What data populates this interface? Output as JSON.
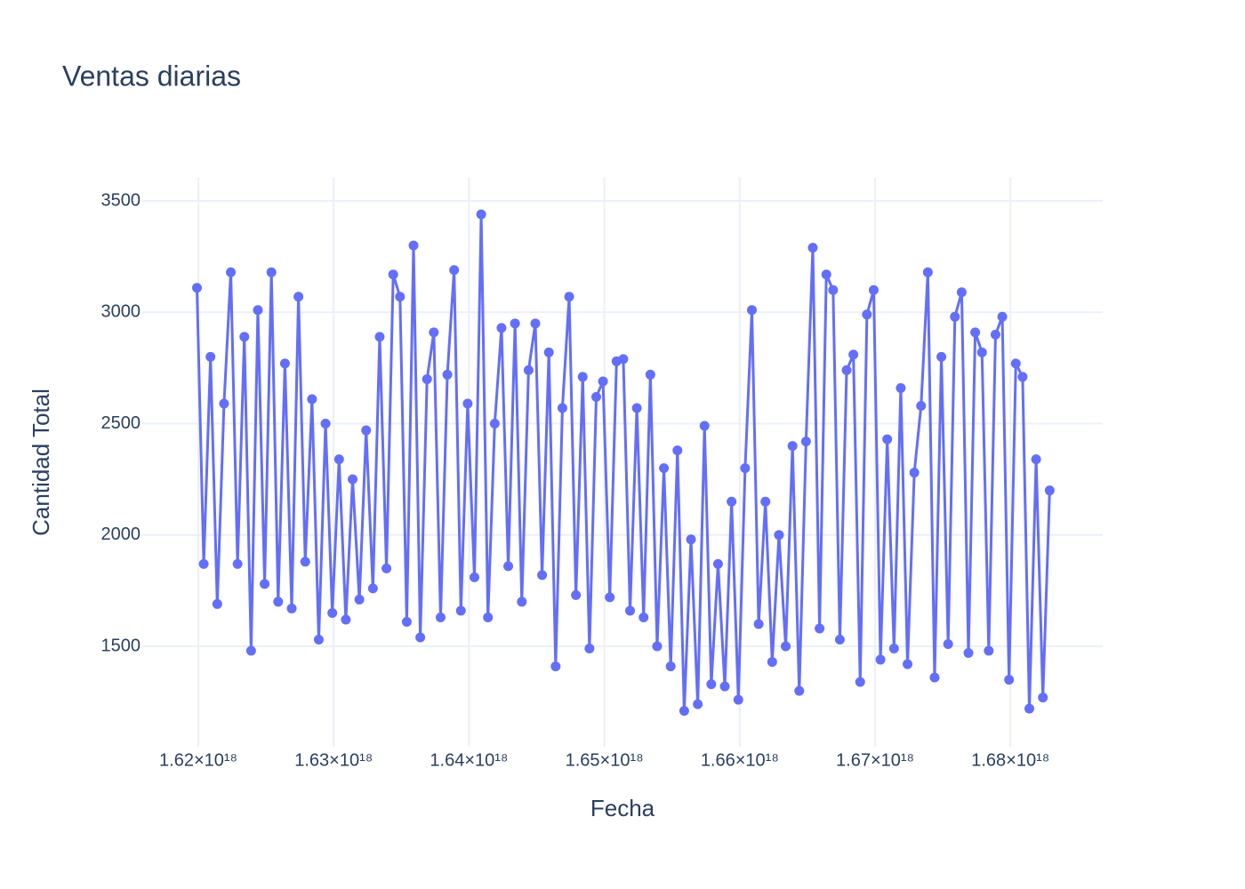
{
  "chart_data": {
    "type": "line",
    "title": "Ventas diarias",
    "x_label": "Fecha",
    "y_label": "Cantidad Total",
    "color": "#636efa",
    "markers": true,
    "grid": true,
    "x": [
      1.6199e+18,
      1.6204e+18,
      1.6209e+18,
      1.6214e+18,
      1.6219e+18,
      1.6224e+18,
      1.6229e+18,
      1.6234e+18,
      1.6239e+18,
      1.6244e+18,
      1.6249e+18,
      1.6254e+18,
      1.6259e+18,
      1.6264e+18,
      1.6269e+18,
      1.6274e+18,
      1.6279e+18,
      1.6284e+18,
      1.6289e+18,
      1.6294e+18,
      1.6299e+18,
      1.6304e+18,
      1.6309e+18,
      1.6314e+18,
      1.6319e+18,
      1.6324e+18,
      1.6329e+18,
      1.6334e+18,
      1.6339e+18,
      1.6344e+18,
      1.6349e+18,
      1.6354e+18,
      1.6359e+18,
      1.6364e+18,
      1.6369e+18,
      1.6374e+18,
      1.6379e+18,
      1.6384e+18,
      1.6389e+18,
      1.6394e+18,
      1.6399e+18,
      1.6404e+18,
      1.6409e+18,
      1.6414e+18,
      1.6419e+18,
      1.6424e+18,
      1.6429e+18,
      1.6434e+18,
      1.6439e+18,
      1.6444e+18,
      1.6449e+18,
      1.6454e+18,
      1.6459e+18,
      1.6464e+18,
      1.6469e+18,
      1.6474e+18,
      1.6479e+18,
      1.6484e+18,
      1.6489e+18,
      1.6494e+18,
      1.6499e+18,
      1.6504e+18,
      1.6509e+18,
      1.6514e+18,
      1.6519e+18,
      1.6524e+18,
      1.6529e+18,
      1.6534e+18,
      1.6539e+18,
      1.6544e+18,
      1.6549e+18,
      1.6554e+18,
      1.6559e+18,
      1.6564e+18,
      1.6569e+18,
      1.6574e+18,
      1.6579e+18,
      1.6584e+18,
      1.6589e+18,
      1.6594e+18,
      1.6599e+18,
      1.6604e+18,
      1.6609e+18,
      1.6614e+18,
      1.6619e+18,
      1.6624e+18,
      1.6629e+18,
      1.6634e+18,
      1.6639e+18,
      1.6644e+18,
      1.6649e+18,
      1.6654e+18,
      1.6659e+18,
      1.6664e+18,
      1.6669e+18,
      1.6674e+18,
      1.6679e+18,
      1.6684e+18,
      1.6689e+18,
      1.6694e+18,
      1.6699e+18,
      1.6704e+18,
      1.6709e+18,
      1.6714e+18,
      1.6719e+18,
      1.6724e+18,
      1.6729e+18,
      1.6734e+18,
      1.6739e+18,
      1.6744e+18,
      1.6749e+18,
      1.6754e+18,
      1.6759e+18,
      1.6764e+18,
      1.6769e+18,
      1.6774e+18,
      1.6779e+18,
      1.6784e+18,
      1.6789e+18,
      1.6794e+18,
      1.6799e+18,
      1.6804e+18,
      1.6809e+18,
      1.6814e+18,
      1.6819e+18,
      1.6824e+18,
      1.6829e+18
    ],
    "values": [
      3110,
      1870,
      2800,
      1690,
      2590,
      3180,
      1870,
      2890,
      1480,
      3010,
      1780,
      3180,
      1700,
      2770,
      1670,
      3070,
      1880,
      2610,
      1530,
      2500,
      1650,
      2340,
      1620,
      2250,
      1710,
      2470,
      1760,
      2890,
      1850,
      3170,
      3070,
      1610,
      3300,
      1540,
      2700,
      2910,
      1630,
      2720,
      3190,
      1660,
      2590,
      1810,
      3440,
      1630,
      2500,
      2930,
      1860,
      2950,
      1700,
      2740,
      2950,
      1820,
      2820,
      1410,
      2570,
      3070,
      1730,
      2710,
      1490,
      2620,
      2690,
      1720,
      2780,
      2790,
      1660,
      2570,
      1630,
      2720,
      1500,
      2300,
      1410,
      2380,
      1210,
      1980,
      1240,
      2490,
      1330,
      1870,
      1320,
      2150,
      1260,
      2300,
      3010,
      1600,
      2150,
      1430,
      2000,
      1500,
      2400,
      1300,
      2420,
      3290,
      1580,
      3170,
      3100,
      1530,
      2740,
      2810,
      1340,
      2990,
      3100,
      1440,
      2430,
      1490,
      2660,
      1420,
      2280,
      2580,
      3180,
      1360,
      2800,
      1510,
      2980,
      3090,
      1470,
      2910,
      2820,
      1480,
      2900,
      2980,
      1350,
      2770,
      2710,
      1220,
      2340,
      1270,
      2200
    ],
    "xlim": [
      1.61586e+18,
      1.68682e+18
    ],
    "ylim": [
      1049,
      3604
    ],
    "xticks": [
      {
        "value": 1.62e+18,
        "label": "1.62×10¹⁸"
      },
      {
        "value": 1.63e+18,
        "label": "1.63×10¹⁸"
      },
      {
        "value": 1.64e+18,
        "label": "1.64×10¹⁸"
      },
      {
        "value": 1.65e+18,
        "label": "1.65×10¹⁸"
      },
      {
        "value": 1.66e+18,
        "label": "1.66×10¹⁸"
      },
      {
        "value": 1.67e+18,
        "label": "1.67×10¹⁸"
      },
      {
        "value": 1.68e+18,
        "label": "1.68×10¹⁸"
      }
    ],
    "yticks": [
      1500,
      2000,
      2500,
      3000,
      3500
    ]
  }
}
